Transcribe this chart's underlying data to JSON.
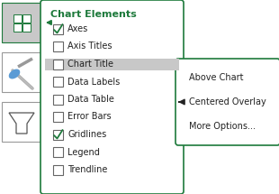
{
  "title": "Chart Elements",
  "title_color": "#1E7A3C",
  "items": [
    "Axes",
    "Axis Titles",
    "Chart Title",
    "Data Labels",
    "Data Table",
    "Error Bars",
    "Gridlines",
    "Legend",
    "Trendline"
  ],
  "checked": [
    true,
    false,
    false,
    false,
    false,
    false,
    true,
    false,
    false
  ],
  "highlighted": [
    false,
    false,
    true,
    false,
    false,
    false,
    false,
    false,
    false
  ],
  "highlight_color": "#C8C8C8",
  "submenu_items": [
    "Above Chart",
    "Centered Overlay",
    "More Options..."
  ],
  "check_color": "#1E7A3C",
  "border_color": "#1E7A3C",
  "bg_color": "#FFFFFF",
  "arrow_color": "#222222",
  "font_size": 7.0,
  "title_font_size": 8.0,
  "icon_border_color": "#888888",
  "icon_bg": "#D8D8D8"
}
